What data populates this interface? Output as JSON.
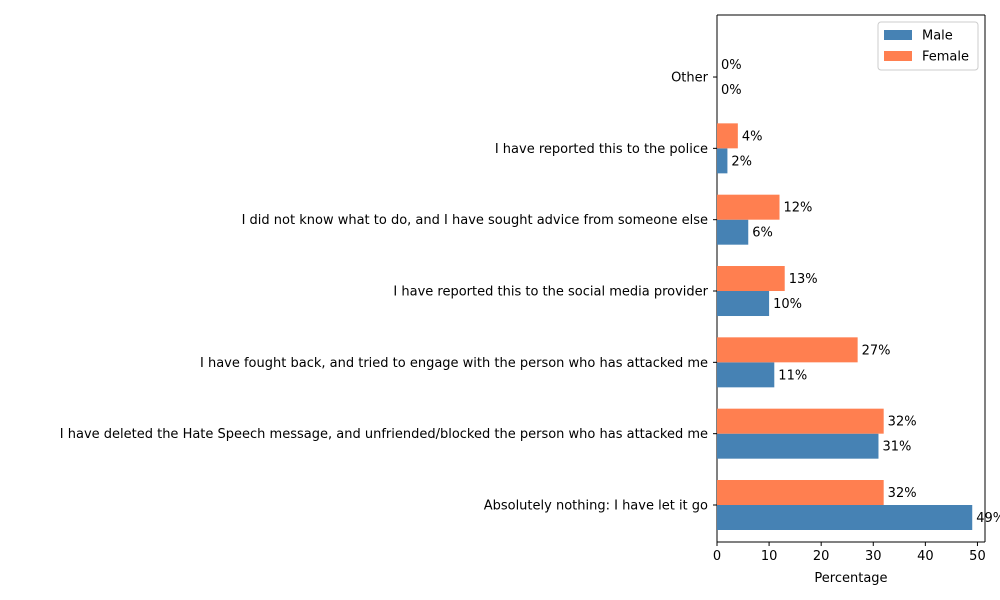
{
  "chart_data": {
    "type": "bar",
    "orientation": "horizontal",
    "categories": [
      "Absolutely nothing: I have let it go",
      "I have deleted the Hate Speech message, and unfriended/blocked the person who has attacked me",
      "I have fought back, and tried to engage with the person who has attacked me",
      "I have reported this to the social media provider",
      "I did not know what to do, and I have sought advice from someone else",
      "I have reported this to the police",
      "Other"
    ],
    "series": [
      {
        "name": "Male",
        "color": "#4682b4",
        "values": [
          49,
          31,
          11,
          10,
          6,
          2,
          0
        ]
      },
      {
        "name": "Female",
        "color": "#ff7f50",
        "values": [
          32,
          32,
          27,
          13,
          12,
          4,
          0
        ]
      }
    ],
    "value_suffix": "%",
    "xlabel": "Percentage",
    "xticks": [
      0,
      10,
      20,
      30,
      40,
      50
    ],
    "xlim": [
      0,
      51.45
    ],
    "legend_position": "top-right",
    "grid": false
  }
}
